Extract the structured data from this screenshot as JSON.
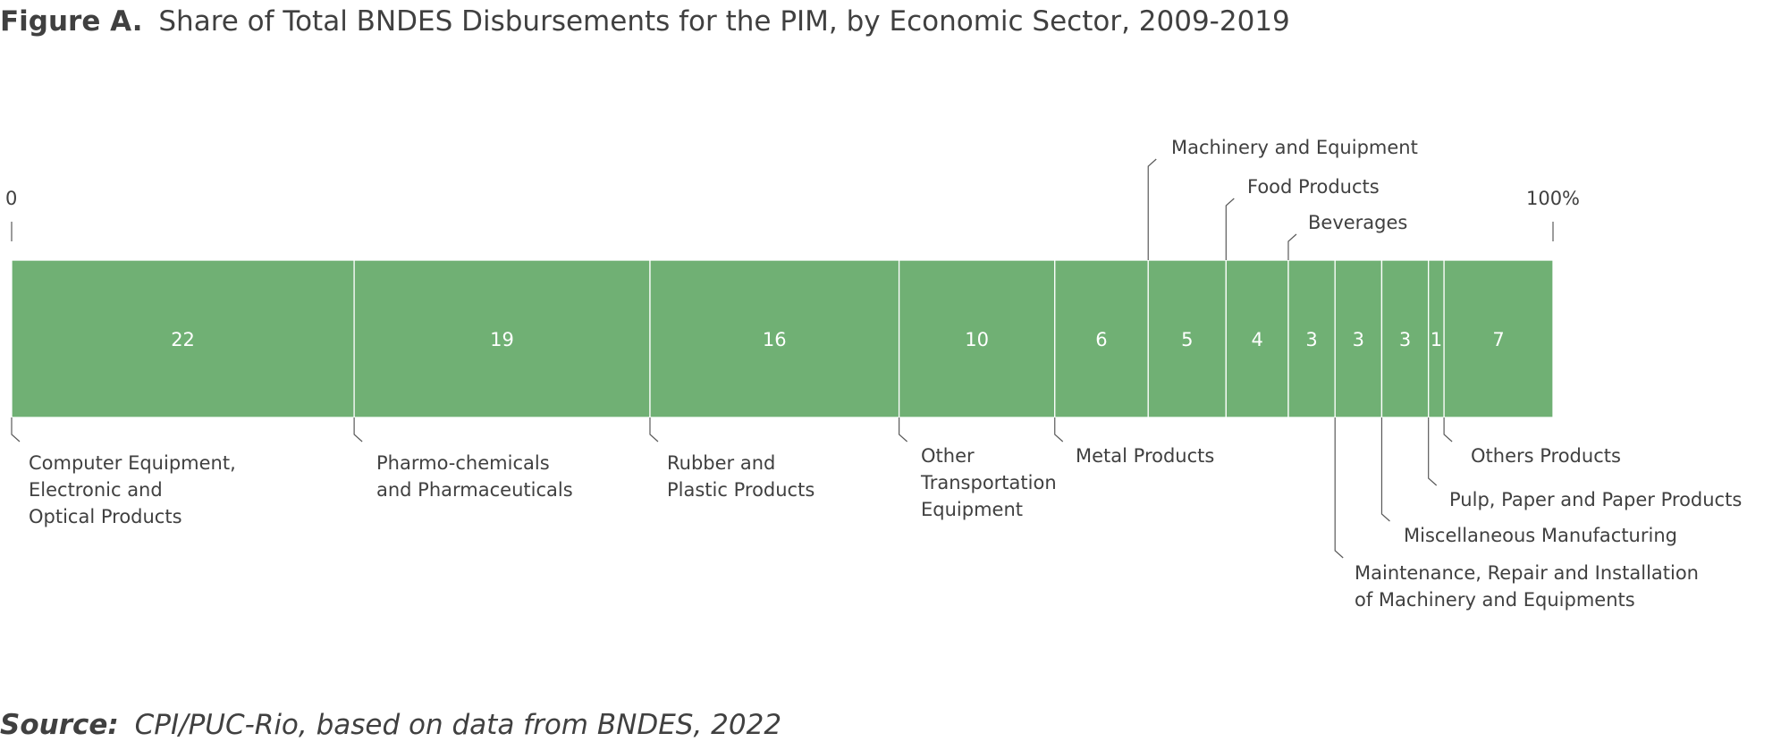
{
  "title": {
    "prefix": "Figure A.",
    "text": "Share of Total BNDES Disbursements for the PIM, by Economic Sector, 2009-2019"
  },
  "source": {
    "prefix": "Source:",
    "text": "CPI/PUC-Rio, based on data from BNDES, 2022"
  },
  "colors": {
    "bar": "#70b074",
    "text": "#404040",
    "leader": "#595959",
    "segment_label": "#ffffff"
  },
  "chart_data": {
    "type": "bar",
    "orientation": "horizontal-stacked-100",
    "axis": {
      "start_label": "0",
      "end_label": "100%",
      "range": [
        0,
        100
      ]
    },
    "grid": false,
    "legend": "none",
    "segments": [
      {
        "name": "Computer Equipment, Electronic and Optical Products",
        "lines": [
          "Computer Equipment,",
          "Electronic and",
          "Optical Products"
        ],
        "value": 22,
        "label_side": "below"
      },
      {
        "name": "Pharmo-chemicals and Pharmaceuticals",
        "lines": [
          "Pharmo-chemicals",
          "and Pharmaceuticals"
        ],
        "value": 19,
        "label_side": "below"
      },
      {
        "name": "Rubber and Plastic Products",
        "lines": [
          "Rubber and",
          "Plastic Products"
        ],
        "value": 16,
        "label_side": "below"
      },
      {
        "name": "Other Transportation Equipment",
        "lines": [
          "Other",
          "Transportation",
          "Equipment"
        ],
        "value": 10,
        "label_side": "below"
      },
      {
        "name": "Metal Products",
        "lines": [
          "Metal Products"
        ],
        "value": 6,
        "label_side": "below"
      },
      {
        "name": "Machinery and Equipment",
        "lines": [
          "Machinery and Equipment"
        ],
        "value": 5,
        "label_side": "above"
      },
      {
        "name": "Food Products",
        "lines": [
          "Food Products"
        ],
        "value": 4,
        "label_side": "above"
      },
      {
        "name": "Beverages",
        "lines": [
          "Beverages"
        ],
        "value": 3,
        "label_side": "above"
      },
      {
        "name": "Maintenance, Repair and Installation of Machinery and Equipments",
        "lines": [
          "Maintenance, Repair and Installation",
          "of Machinery and Equipments"
        ],
        "value": 3,
        "label_side": "below"
      },
      {
        "name": "Miscellaneous Manufacturing",
        "lines": [
          "Miscellaneous Manufacturing"
        ],
        "value": 3,
        "label_side": "below"
      },
      {
        "name": "Pulp, Paper and Paper Products",
        "lines": [
          "Pulp, Paper and Paper Products"
        ],
        "value": 1,
        "label_side": "below"
      },
      {
        "name": "Others Products",
        "lines": [
          "Others Products"
        ],
        "value": 7,
        "label_side": "below"
      }
    ]
  }
}
